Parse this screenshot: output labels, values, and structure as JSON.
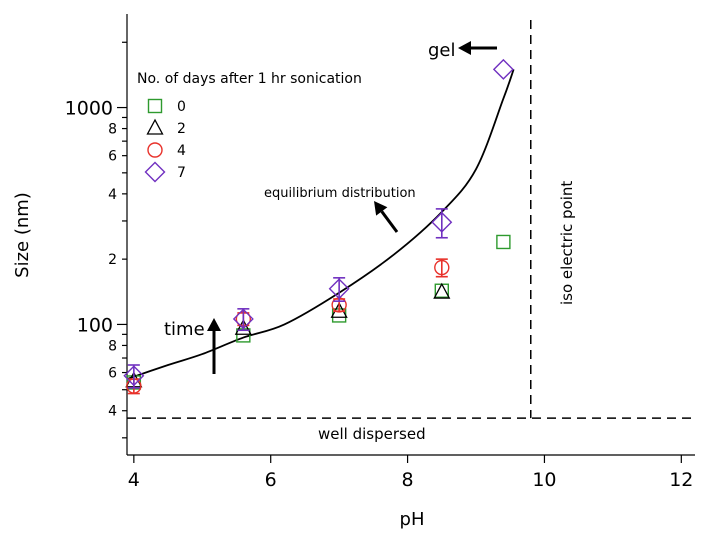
{
  "chart_data": {
    "type": "scatter",
    "xlabel": "pH",
    "ylabel": "Size (nm)",
    "xlim": [
      3.9,
      12.2
    ],
    "ylim": [
      25,
      2700
    ],
    "yscale": "log",
    "x_ticks": [
      "4",
      "6",
      "8",
      "10",
      "12"
    ],
    "y_major_ticks": [
      "100",
      "1000"
    ],
    "y_minor_tick_labels": [
      {
        "value": 40,
        "label": "4"
      },
      {
        "value": 60,
        "label": "6"
      },
      {
        "value": 80,
        "label": "8"
      },
      {
        "value": 200,
        "label": "2"
      },
      {
        "value": 400,
        "label": "4"
      },
      {
        "value": 600,
        "label": "6"
      },
      {
        "value": 800,
        "label": "8"
      }
    ],
    "legend": {
      "title": "No. of days after 1 hr sonication",
      "position": "top-left"
    },
    "series": [
      {
        "name": "0",
        "marker": "square",
        "color": "#2e9a2e",
        "points": [
          {
            "x": 4.0,
            "y": 54
          },
          {
            "x": 5.6,
            "y": 89
          },
          {
            "x": 7.0,
            "y": 110
          },
          {
            "x": 8.5,
            "y": 143
          },
          {
            "x": 9.4,
            "y": 240
          }
        ]
      },
      {
        "name": "2",
        "marker": "triangle",
        "color": "#000000",
        "points": [
          {
            "x": 4.0,
            "y": 55
          },
          {
            "x": 5.6,
            "y": 96
          },
          {
            "x": 7.0,
            "y": 115
          },
          {
            "x": 8.5,
            "y": 141
          }
        ]
      },
      {
        "name": "4",
        "marker": "circle",
        "color": "#e8312a",
        "points": [
          {
            "x": 4.0,
            "y": 52,
            "err": 4
          },
          {
            "x": 5.6,
            "y": 106,
            "err": 7
          },
          {
            "x": 7.0,
            "y": 123,
            "err": 8
          },
          {
            "x": 8.5,
            "y": 183,
            "err": 17
          }
        ]
      },
      {
        "name": "7",
        "marker": "diamond",
        "color": "#7030c0",
        "points": [
          {
            "x": 4.0,
            "y": 58,
            "err": 7
          },
          {
            "x": 5.6,
            "y": 106,
            "err": 12
          },
          {
            "x": 7.0,
            "y": 146,
            "err": 18
          },
          {
            "x": 8.5,
            "y": 296,
            "err": 45
          },
          {
            "x": 9.4,
            "y": 1500
          }
        ]
      }
    ],
    "fit_curve": {
      "points": [
        [
          3.9,
          56
        ],
        [
          4.5,
          65
        ],
        [
          5.0,
          73
        ],
        [
          5.6,
          87
        ],
        [
          6.2,
          100
        ],
        [
          7.0,
          140
        ],
        [
          7.8,
          210
        ],
        [
          8.5,
          330
        ],
        [
          9.0,
          520
        ],
        [
          9.4,
          1100
        ],
        [
          9.55,
          1500
        ]
      ]
    },
    "reference_lines": {
      "vertical_x": 9.8,
      "horizontal_y": 37
    },
    "annotations": {
      "gel": "gel",
      "time": "time",
      "equilibrium": "equilibrium distribution",
      "iso": "iso electric point",
      "well": "well dispersed"
    }
  }
}
